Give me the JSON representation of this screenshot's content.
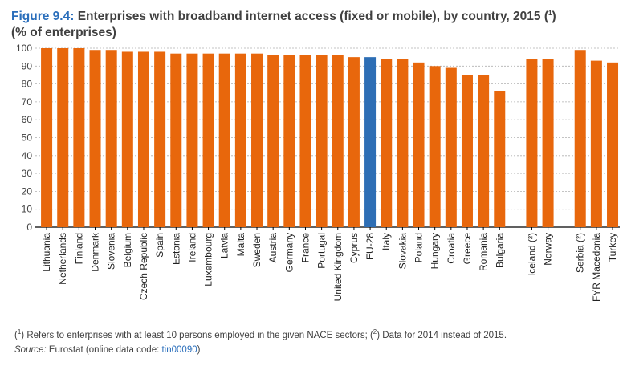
{
  "header": {
    "figure_label": "Figure 9.4:",
    "title": "Enterprises with broadband internet access (fixed or mobile), by country, 2015 (",
    "title_note": "1",
    "title_close": ")",
    "subtitle": "(% of enterprises)"
  },
  "colors": {
    "bar": "#e8670c",
    "highlight": "#2d6eb5",
    "grid": "#b0b0b0",
    "text": "#404040",
    "accent": "#2a6ebb"
  },
  "chart_data": {
    "type": "bar",
    "ylim": [
      0,
      100
    ],
    "yticks": [
      0,
      10,
      20,
      30,
      40,
      50,
      60,
      70,
      80,
      90,
      100
    ],
    "grid": true,
    "highlight_category": "EU-28",
    "groups": [
      {
        "categories": [
          "Lithuania",
          "Netherlands",
          "Finland",
          "Denmark",
          "Slovenia",
          "Belgium",
          "Czech Republic",
          "Spain",
          "Estonia",
          "Ireland",
          "Luxembourg",
          "Latvia",
          "Malta",
          "Sweden",
          "Austria",
          "Germany",
          "France",
          "Portugal",
          "United Kingdom",
          "Cyprus",
          "EU-28",
          "Italy",
          "Slovakia",
          "Poland",
          "Hungary",
          "Croatia",
          "Greece",
          "Romania",
          "Bulgaria"
        ],
        "values": [
          100,
          100,
          100,
          99,
          99,
          98,
          98,
          98,
          97,
          97,
          97,
          97,
          97,
          97,
          96,
          96,
          96,
          96,
          96,
          95,
          95,
          94,
          94,
          92,
          90,
          89,
          85,
          85,
          76
        ]
      },
      {
        "categories": [
          "Iceland (²)",
          "Norway"
        ],
        "values": [
          94,
          94
        ]
      },
      {
        "categories": [
          "Serbia (²)",
          "FYR Macedonia",
          "Turkey"
        ],
        "values": [
          99,
          93,
          92
        ]
      }
    ]
  },
  "footnotes": {
    "note1_marker": "1",
    "note1_text": " Refers to enterprises with at least 10 persons employed in the given NACE sectors; (",
    "note2_marker": "2",
    "note2_text": " Data for 2014 instead of 2015.",
    "source_label": "Source:",
    "source_text": " Eurostat (online data code: ",
    "source_code": "tin00090",
    "source_close": ")"
  }
}
